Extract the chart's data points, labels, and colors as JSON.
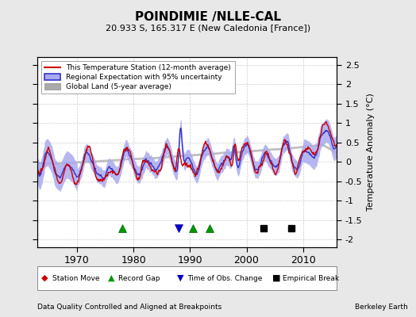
{
  "title": "POINDIMIE /NLLE-CAL",
  "subtitle": "20.933 S, 165.317 E (New Caledonia [France])",
  "ylabel": "Temperature Anomaly (°C)",
  "ylim": [
    -2.2,
    2.7
  ],
  "xlim": [
    1963,
    2016
  ],
  "yticks": [
    -2,
    -1.5,
    -1,
    -0.5,
    0,
    0.5,
    1,
    1.5,
    2,
    2.5
  ],
  "xticks": [
    1970,
    1980,
    1990,
    2000,
    2010
  ],
  "footer_left": "Data Quality Controlled and Aligned at Breakpoints",
  "footer_right": "Berkeley Earth",
  "bg_color": "#e8e8e8",
  "plot_bg_color": "#ffffff",
  "station_color": "#cc0000",
  "regional_color": "#3333cc",
  "regional_fill_color": "#aaaaee",
  "global_color": "#aaaaaa",
  "legend_items": [
    "This Temperature Station (12-month average)",
    "Regional Expectation with 95% uncertainty",
    "Global Land (5-year average)"
  ],
  "marker_events": {
    "record_gaps": [
      1978.0,
      1990.5,
      1993.5
    ],
    "obs_changes": [
      1988.0
    ],
    "empirical_breaks": [
      2003.0,
      2008.0
    ]
  }
}
